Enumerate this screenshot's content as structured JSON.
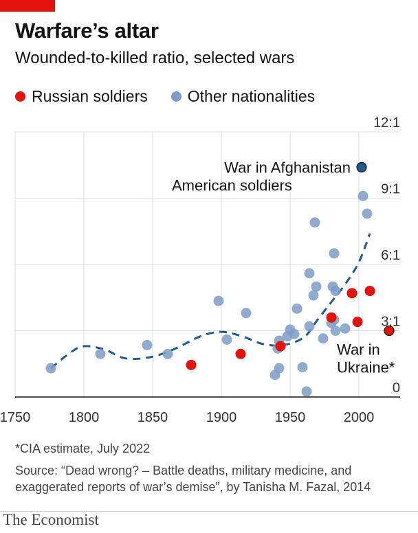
{
  "header": {
    "title": "Warfare’s altar",
    "subtitle": "Wounded-to-killed ratio, selected wars"
  },
  "legend": {
    "russian": "Russian soldiers",
    "other": "Other nationalities"
  },
  "colors": {
    "russian": "#e3120b",
    "other": "#7e9cc7",
    "trend": "#1f5b91",
    "afghanistan": "#1f5b91",
    "brand_red": "#e3120b"
  },
  "chart_data": {
    "type": "scatter",
    "title": "Wounded-to-killed ratio, selected wars",
    "xlim": [
      1750,
      2030
    ],
    "ylim": [
      0,
      12
    ],
    "x_ticks": [
      "1750",
      "1800",
      "1850",
      "1900",
      "1950",
      "2000"
    ],
    "y_ticks": [
      "0",
      "3:1",
      "6:1",
      "9:1",
      "12:1"
    ],
    "y_tick_values": [
      0,
      3,
      6,
      9,
      12
    ],
    "x_tick_values": [
      1750,
      1800,
      1850,
      1900,
      1950,
      2000
    ],
    "series": [
      {
        "name": "Other nationalities",
        "points": [
          [
            1776,
            1.3
          ],
          [
            1812,
            1.95
          ],
          [
            1846,
            2.35
          ],
          [
            1861,
            1.95
          ],
          [
            1898,
            4.35
          ],
          [
            1904,
            2.6
          ],
          [
            1918,
            3.8
          ],
          [
            1939,
            1.0
          ],
          [
            1941,
            2.2
          ],
          [
            1942,
            2.55
          ],
          [
            1942,
            1.3
          ],
          [
            1948,
            2.75
          ],
          [
            1950,
            3.05
          ],
          [
            1953,
            2.85
          ],
          [
            1955,
            4.0
          ],
          [
            1959,
            1.35
          ],
          [
            1962,
            0.25
          ],
          [
            1964,
            3.2
          ],
          [
            1964,
            5.6
          ],
          [
            1967,
            4.6
          ],
          [
            1968,
            7.9
          ],
          [
            1969,
            5.0
          ],
          [
            1974,
            2.65
          ],
          [
            1980,
            3.35
          ],
          [
            1981,
            5.0
          ],
          [
            1982,
            6.5
          ],
          [
            1982,
            3.5
          ],
          [
            1983,
            4.8
          ],
          [
            1983,
            3.0
          ],
          [
            1990,
            3.1
          ],
          [
            2003,
            9.1
          ],
          [
            2006,
            8.3
          ]
        ]
      },
      {
        "name": "Russian soldiers",
        "points": [
          [
            1878,
            1.45
          ],
          [
            1914,
            1.95
          ],
          [
            1943,
            2.3
          ],
          [
            1980,
            3.6
          ],
          [
            1995,
            4.7
          ],
          [
            1999,
            3.4
          ],
          [
            2008,
            4.8
          ]
        ]
      }
    ],
    "highlights": [
      {
        "label_line1": "War in Afghanistan",
        "label_line2": "American soldiers",
        "x": 2002,
        "y": 10.4
      },
      {
        "label_line1": "War in",
        "label_line2": "Ukraine*",
        "x": 2022,
        "y": 3.0
      }
    ],
    "trend_line": [
      [
        1776,
        1.3
      ],
      [
        1790,
        2.0
      ],
      [
        1800,
        2.3
      ],
      [
        1815,
        2.15
      ],
      [
        1830,
        1.75
      ],
      [
        1848,
        1.8
      ],
      [
        1865,
        2.15
      ],
      [
        1885,
        2.75
      ],
      [
        1900,
        2.95
      ],
      [
        1915,
        2.75
      ],
      [
        1930,
        2.4
      ],
      [
        1945,
        2.35
      ],
      [
        1960,
        2.7
      ],
      [
        1970,
        3.5
      ],
      [
        1980,
        4.3
      ],
      [
        1990,
        5.1
      ],
      [
        2000,
        6.1
      ],
      [
        2008,
        7.4
      ]
    ]
  },
  "footer": {
    "note": "*CIA estimate, July 2022",
    "source_line1": "Source: “Dead wrong? – Battle deaths, military medicine, and",
    "source_line2": "exaggerated reports of war’s demise”, by Tanisha M. Fazal, 2014",
    "brand": "The Economist"
  }
}
